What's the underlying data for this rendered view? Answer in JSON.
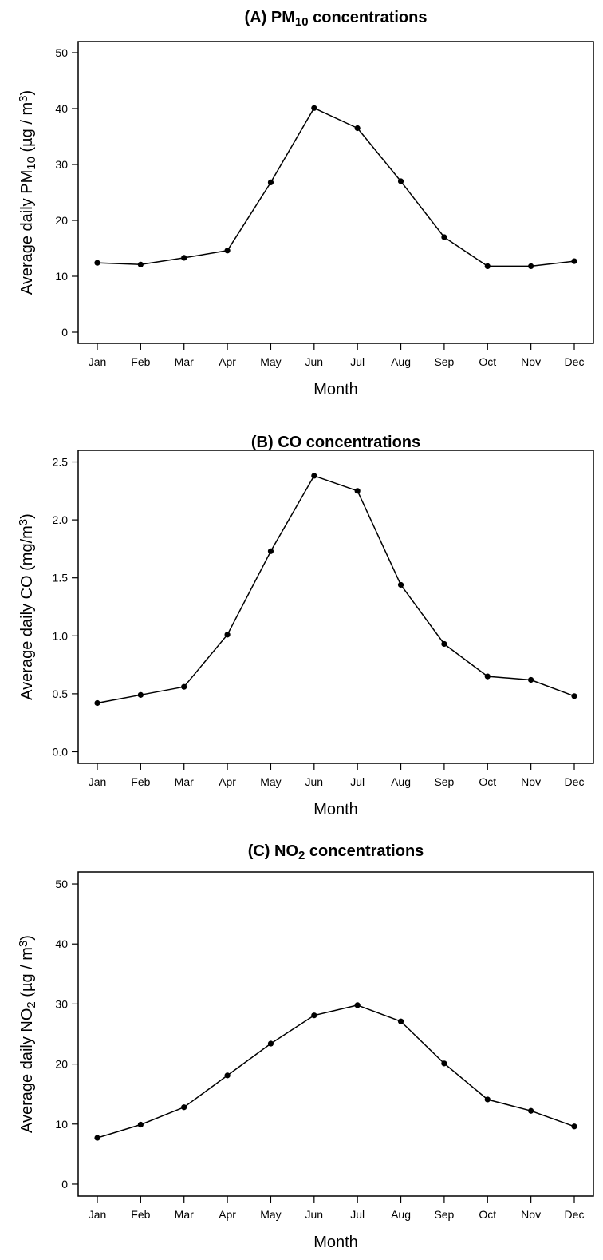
{
  "chart_data": [
    {
      "type": "line",
      "title_prefix": "(A) PM",
      "title_sub": "10",
      "title_suffix": " concentrations",
      "ylabel_prefix": "Average daily PM",
      "ylabel_sub": "10",
      "ylabel_unit": " (µg / m",
      "ylabel_sup": "3",
      "ylabel_close": ")",
      "xlabel": "Month",
      "categories": [
        "Jan",
        "Feb",
        "Mar",
        "Apr",
        "May",
        "Jun",
        "Jul",
        "Aug",
        "Sep",
        "Oct",
        "Nov",
        "Dec"
      ],
      "values": [
        12.4,
        12.1,
        13.3,
        14.6,
        26.8,
        40.1,
        36.5,
        27.0,
        17.0,
        11.8,
        11.8,
        12.7
      ],
      "ylim": [
        -2,
        52
      ],
      "yticks": [
        "0",
        "10",
        "20",
        "30",
        "40",
        "50"
      ],
      "ytick_values": [
        0,
        10,
        20,
        30,
        40,
        50
      ],
      "grid": false,
      "legend": "none"
    },
    {
      "type": "line",
      "title_prefix": "(B) CO",
      "title_sub": "",
      "title_suffix": " concentrations",
      "ylabel_prefix": "Average daily CO",
      "ylabel_sub": "",
      "ylabel_unit": " (mg/m",
      "ylabel_sup": "3",
      "ylabel_close": ")",
      "xlabel": "Month",
      "categories": [
        "Jan",
        "Feb",
        "Mar",
        "Apr",
        "May",
        "Jun",
        "Jul",
        "Aug",
        "Sep",
        "Oct",
        "Nov",
        "Dec"
      ],
      "values": [
        0.42,
        0.49,
        0.56,
        1.01,
        1.73,
        2.38,
        2.25,
        1.44,
        0.93,
        0.65,
        0.62,
        0.48
      ],
      "ylim": [
        -0.1,
        2.6
      ],
      "yticks": [
        "0.0",
        "0.5",
        "1.0",
        "1.5",
        "2.0",
        "2.5"
      ],
      "ytick_values": [
        0,
        0.5,
        1.0,
        1.5,
        2.0,
        2.5
      ],
      "grid": false,
      "legend": "none"
    },
    {
      "type": "line",
      "title_prefix": "(C) NO",
      "title_sub": "2",
      "title_suffix": " concentrations",
      "ylabel_prefix": "Average daily NO",
      "ylabel_sub": "2",
      "ylabel_unit": " (µg / m",
      "ylabel_sup": "3",
      "ylabel_close": ")",
      "xlabel": "Month",
      "categories": [
        "Jan",
        "Feb",
        "Mar",
        "Apr",
        "May",
        "Jun",
        "Jul",
        "Aug",
        "Sep",
        "Oct",
        "Nov",
        "Dec"
      ],
      "values": [
        7.7,
        9.9,
        12.8,
        18.1,
        23.4,
        28.1,
        29.8,
        27.1,
        20.1,
        14.1,
        12.2,
        9.6
      ],
      "ylim": [
        -2,
        52
      ],
      "yticks": [
        "0",
        "10",
        "20",
        "30",
        "40",
        "50"
      ],
      "ytick_values": [
        0,
        10,
        20,
        30,
        40,
        50
      ],
      "grid": false,
      "legend": "none"
    }
  ]
}
